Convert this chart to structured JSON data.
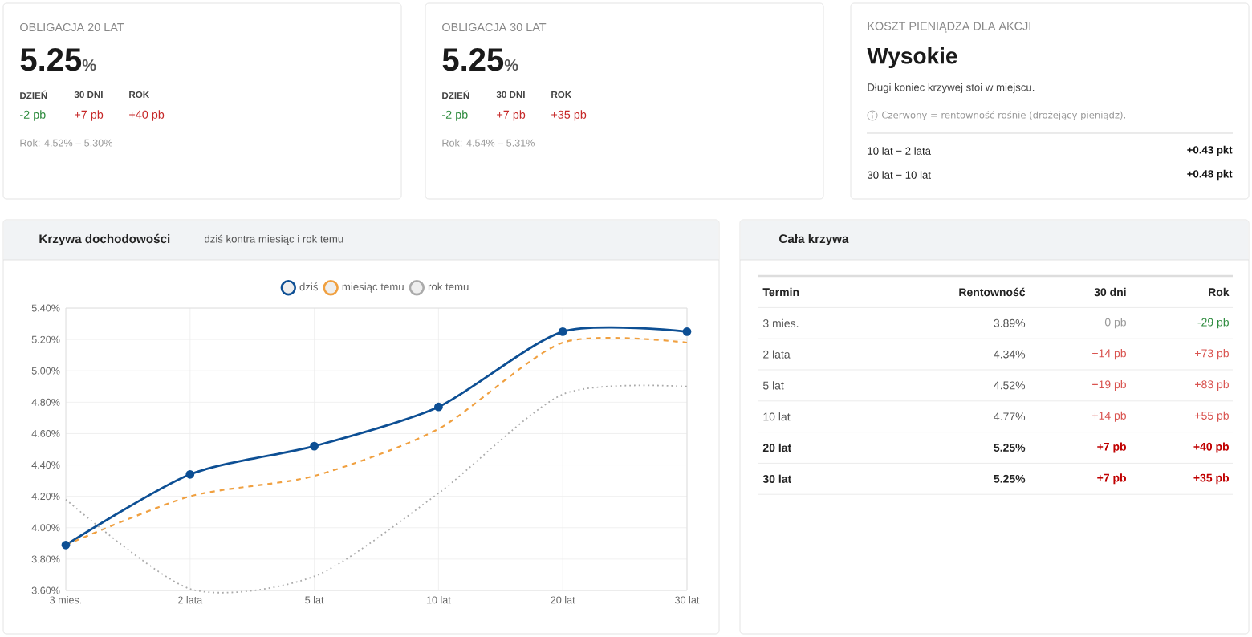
{
  "chart_data": [
    {
      "type": "other",
      "title": "OBLIGACJA 20 LAT",
      "annotations": [
        "5.25",
        "%",
        "DZIEŃ",
        "30 DNI",
        "ROK",
        "-2 pb",
        "+7 pb",
        "+40 pb",
        "Rok: 4.52% – 5.30%"
      ],
      "colors": [
        "#1a1a1a",
        "#555555",
        "#444444",
        "#444444",
        "#444444",
        "#2e8b3e",
        "#c62828",
        "#c62828",
        "#999999"
      ]
    },
    {
      "type": "other",
      "title": "OBLIGACJA 30 LAT",
      "annotations": [
        "5.25",
        "%",
        "DZIEŃ",
        "30 DNI",
        "ROK",
        "-2 pb",
        "+7 pb",
        "+35 pb",
        "Rok: 4.54% – 5.31%"
      ],
      "colors": [
        "#1a1a1a",
        "#555555",
        "#444444",
        "#444444",
        "#444444",
        "#2e8b3e",
        "#c62828",
        "#c62828",
        "#999999"
      ]
    },
    {
      "type": "other",
      "title": "KOSZT PIENIĄDZA DLA AKCJI",
      "annotations": [
        "Wysokie",
        "Długi koniec krzywej stoi w miejscu.",
        "Czerwony = rentowność rośnie (drożejący pieniądz).",
        "10 lat − 2 lata",
        "+0.43 pkt",
        "30 lat − 10 lat",
        "+0.48 pkt"
      ],
      "colors": [
        "#1a1a1a",
        "#444444",
        "#999999",
        "#222222",
        "#111111",
        "#222222",
        "#111111"
      ]
    },
    {
      "type": "line",
      "title": "Krzywa dochodowości",
      "subtitle": "dziś kontra miesiąc i rok temu",
      "categories": [
        "3 mies.",
        "2 lata",
        "5 lat",
        "10 lat",
        "20 lat",
        "30 lat"
      ],
      "series": [
        {
          "name": "dziś",
          "color": "#0d4f94",
          "values": [
            3.89,
            4.34,
            4.52,
            4.77,
            5.25,
            5.25
          ],
          "line_style": "solid",
          "marker": "circle"
        },
        {
          "name": "miesiąc temu",
          "color": "#f0a040",
          "values": [
            3.89,
            4.2,
            4.33,
            4.63,
            5.18,
            5.18
          ],
          "line_style": "dashed",
          "marker": "none"
        },
        {
          "name": "rok temu",
          "color": "#aaaaaa",
          "values": [
            4.18,
            3.61,
            3.69,
            4.22,
            4.85,
            4.9
          ],
          "line_style": "dotted",
          "marker": "none"
        }
      ],
      "ylim": [
        3.6,
        5.4
      ],
      "yticks": [
        {
          "value": 3.6,
          "label": "3.60%"
        },
        {
          "value": 3.8,
          "label": "3.80%"
        },
        {
          "value": 4.0,
          "label": "4.00%"
        },
        {
          "value": 4.2,
          "label": "4.20%"
        },
        {
          "value": 4.4,
          "label": "4.40%"
        },
        {
          "value": 4.6,
          "label": "4.60%"
        },
        {
          "value": 4.8,
          "label": "4.80%"
        },
        {
          "value": 5.0,
          "label": "5.00%"
        },
        {
          "value": 5.2,
          "label": "5.20%"
        },
        {
          "value": 5.4,
          "label": "5.40%"
        }
      ],
      "grid": true,
      "legend": "top"
    },
    {
      "type": "other",
      "title": "Cała krzywa",
      "annotations": [
        "Termin",
        "Rentowność",
        "30 dni",
        "Rok",
        "3 mies.",
        "3.89%",
        "0 pb",
        "-29 pb",
        "2 lata",
        "4.34%",
        "+14 pb",
        "+73 pb",
        "5 lat",
        "4.52%",
        "+19 pb",
        "+83 pb",
        "10 lat",
        "4.77%",
        "+14 pb",
        "+55 pb",
        "**20 lat**",
        "**5.25%**",
        "**+7 pb**",
        "**+40 pb**",
        "**30 lat**",
        "**5.25%**",
        "**+7 pb**",
        "**+35 pb**"
      ],
      "colors": [
        "#222222",
        "#222222",
        "#222222",
        "#222222",
        "#555555",
        "#555555",
        "#999999",
        "#2e8b3e",
        "#555555",
        "#555555",
        "#d9534f",
        "#d9534f",
        "#555555",
        "#555555",
        "#d9534f",
        "#d9534f",
        "#555555",
        "#555555",
        "#d9534f",
        "#d9534f",
        "#222222",
        "#222222",
        "#c00000",
        "#c00000",
        "#222222",
        "#222222",
        "#c00000",
        "#c00000"
      ]
    }
  ]
}
